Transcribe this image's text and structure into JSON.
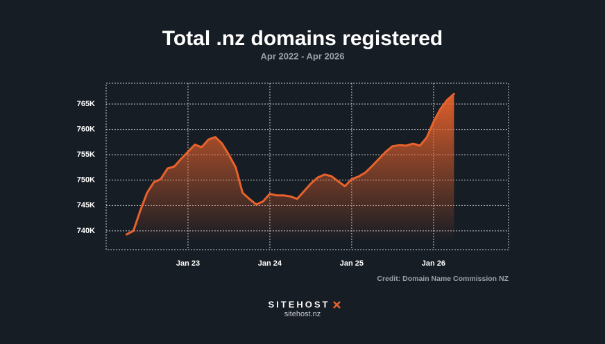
{
  "chart_data": {
    "type": "area",
    "title": "Total .nz domains registered",
    "subtitle": "Apr 2022 - Apr 2026",
    "credit": "Credit: Domain Name Commission NZ",
    "x": [
      "2022-04",
      "2022-05",
      "2022-06",
      "2022-07",
      "2022-08",
      "2022-09",
      "2022-10",
      "2022-11",
      "2022-12",
      "2023-01",
      "2023-02",
      "2023-03",
      "2023-04",
      "2023-05",
      "2023-06",
      "2023-07",
      "2023-08",
      "2023-09",
      "2023-10",
      "2023-11",
      "2023-12",
      "2024-01",
      "2024-02",
      "2024-03",
      "2024-04",
      "2024-05",
      "2024-06",
      "2024-07",
      "2024-08",
      "2024-09",
      "2024-10",
      "2024-11",
      "2024-12",
      "2025-01",
      "2025-02",
      "2025-03",
      "2025-04",
      "2025-05",
      "2025-06",
      "2025-07",
      "2025-08",
      "2025-09",
      "2025-10",
      "2025-11",
      "2025-12",
      "2026-01",
      "2026-02",
      "2026-03",
      "2026-04"
    ],
    "values": [
      739300,
      740000,
      744000,
      747500,
      749600,
      750200,
      752300,
      752700,
      754200,
      755600,
      757000,
      756500,
      758000,
      758500,
      757200,
      755000,
      752500,
      747500,
      746300,
      745200,
      745800,
      747300,
      747000,
      747000,
      746800,
      746300,
      747800,
      749300,
      750500,
      751100,
      750800,
      749800,
      748800,
      750200,
      750700,
      751500,
      752800,
      754200,
      755600,
      756700,
      756900,
      756800,
      757200,
      756800,
      758400,
      761500,
      764000,
      765800,
      767000
    ],
    "color": "#e8622c",
    "xlim": [
      "2022-01",
      "2026-12"
    ],
    "xticks": [
      {
        "value": "2023-01",
        "label": "Jan 23"
      },
      {
        "value": "2024-01",
        "label": "Jan 24"
      },
      {
        "value": "2025-01",
        "label": "Jan 25"
      },
      {
        "value": "2026-01",
        "label": "Jan 26"
      }
    ],
    "ylim": [
      736300,
      769100
    ],
    "yticks": [
      {
        "value": 740000,
        "label": "740K"
      },
      {
        "value": 745000,
        "label": "745K"
      },
      {
        "value": 750000,
        "label": "750K"
      },
      {
        "value": 755000,
        "label": "755K"
      },
      {
        "value": 760000,
        "label": "760K"
      },
      {
        "value": 765000,
        "label": "765K"
      }
    ],
    "grid": true
  },
  "footer": {
    "brand": "SITEHOST",
    "url": "sitehost.nz"
  }
}
